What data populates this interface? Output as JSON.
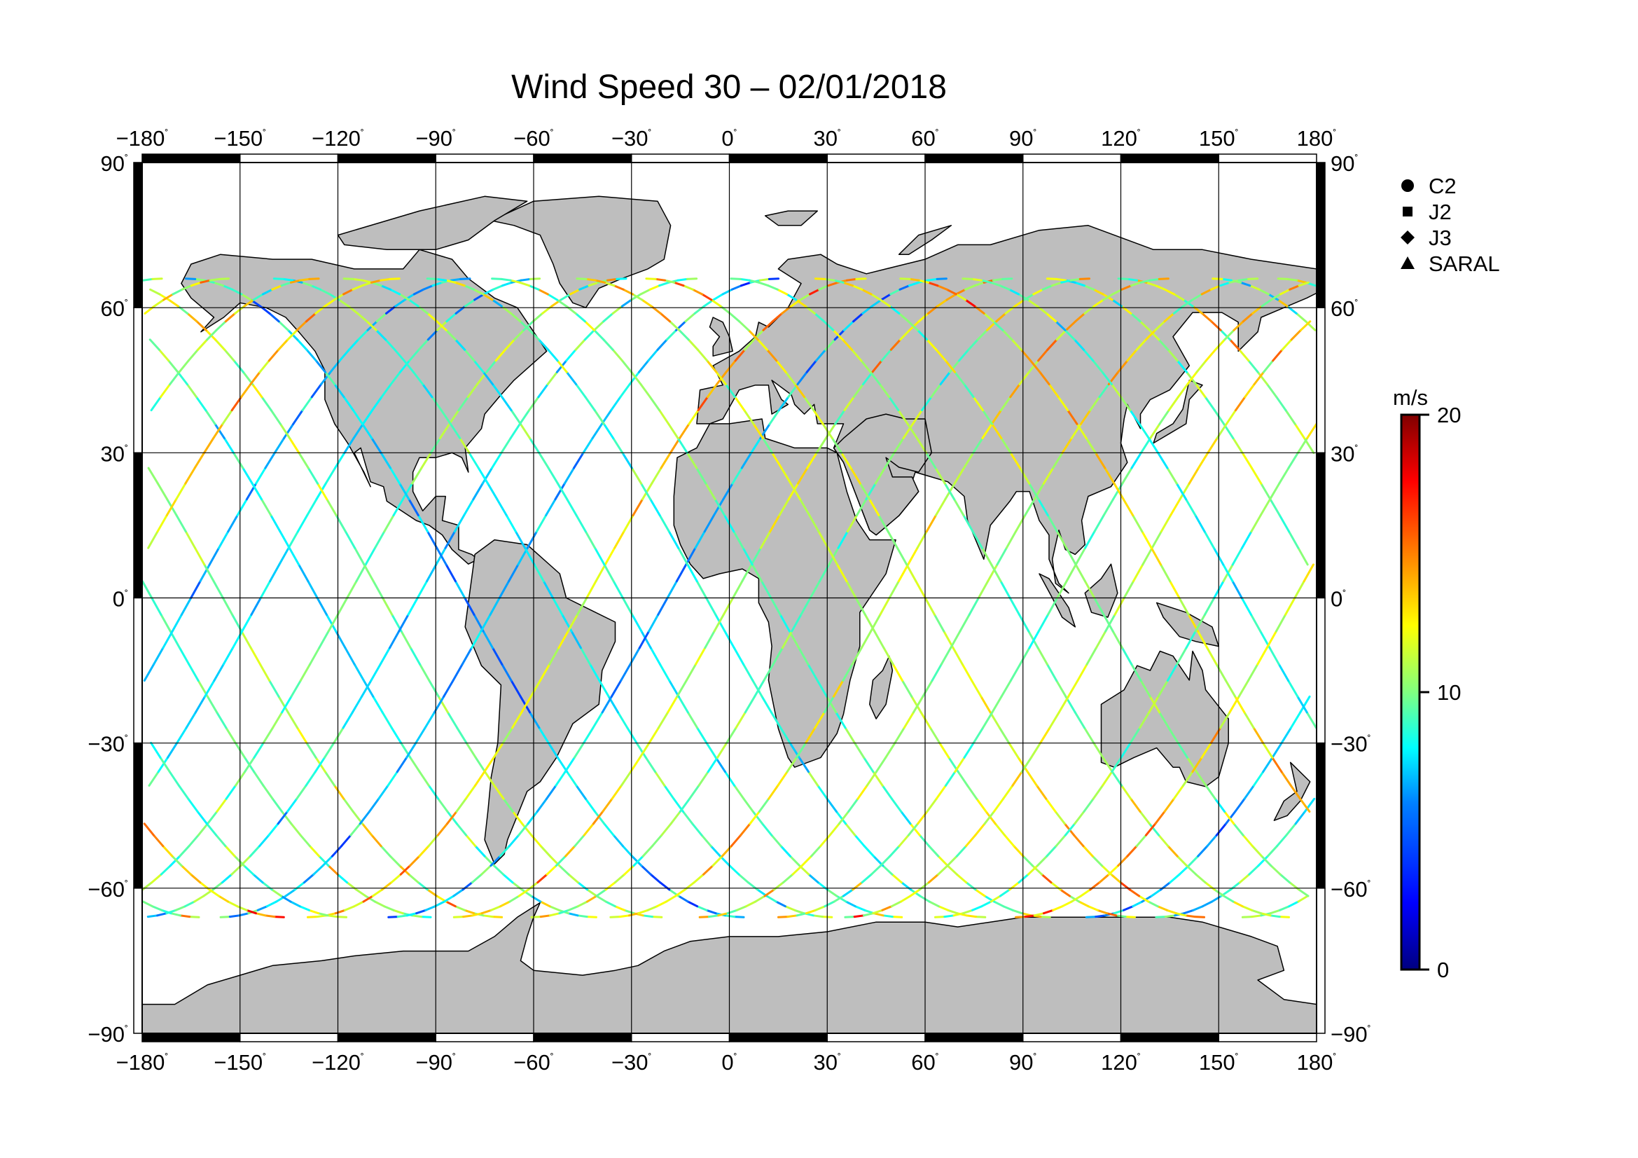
{
  "title": "Wind Speed 30 – 02/01/2018",
  "map": {
    "projection": "equirectangular",
    "lon_range": [
      -180,
      180
    ],
    "lat_range": [
      -90,
      90
    ],
    "lon_ticks": [
      {
        "value": -180,
        "label": "−180"
      },
      {
        "value": -150,
        "label": "−150"
      },
      {
        "value": -120,
        "label": "−120"
      },
      {
        "value": -90,
        "label": "−90"
      },
      {
        "value": -60,
        "label": "−60"
      },
      {
        "value": -30,
        "label": "−30"
      },
      {
        "value": 0,
        "label": "0"
      },
      {
        "value": 30,
        "label": "30"
      },
      {
        "value": 60,
        "label": "60"
      },
      {
        "value": 90,
        "label": "90"
      },
      {
        "value": 120,
        "label": "120"
      },
      {
        "value": 150,
        "label": "150"
      },
      {
        "value": 180,
        "label": "180"
      }
    ],
    "lat_ticks": [
      {
        "value": 90,
        "label": "90"
      },
      {
        "value": 60,
        "label": "60"
      },
      {
        "value": 30,
        "label": "30"
      },
      {
        "value": 0,
        "label": "0"
      },
      {
        "value": -30,
        "label": "−30"
      },
      {
        "value": -60,
        "label": "−60"
      },
      {
        "value": -90,
        "label": "−90"
      }
    ],
    "degree_symbol": "˚",
    "grid": true,
    "land_color": "#bebebe",
    "ocean_color": "#ffffff"
  },
  "legend": {
    "position": "top-right",
    "items": [
      {
        "label": "C2",
        "symbol": "circle"
      },
      {
        "label": "J2",
        "symbol": "square"
      },
      {
        "label": "J3",
        "symbol": "diamond"
      },
      {
        "label": "SARAL",
        "symbol": "triangle"
      }
    ]
  },
  "colorbar": {
    "unit": "m/s",
    "min": 0,
    "max": 20,
    "ticks": [
      {
        "value": 20,
        "label": "20"
      },
      {
        "value": 10,
        "label": "10"
      },
      {
        "value": 0,
        "label": "0"
      }
    ],
    "colormap": [
      "#000080",
      "#0000ff",
      "#0080ff",
      "#00ffff",
      "#80ff80",
      "#ffff00",
      "#ff8000",
      "#ff0000",
      "#800000"
    ]
  },
  "chart_data": {
    "type": "scatter",
    "title": "Wind Speed 30 – 02/01/2018",
    "x_variable": "longitude (deg)",
    "y_variable": "latitude (deg)",
    "color_variable": "wind speed (m/s)",
    "xlim": [
      -180,
      180
    ],
    "ylim": [
      -90,
      90
    ],
    "clim": [
      0,
      20
    ],
    "series": [
      {
        "name": "C2",
        "marker": "circle"
      },
      {
        "name": "J2",
        "marker": "square"
      },
      {
        "name": "J3",
        "marker": "diamond"
      },
      {
        "name": "SARAL",
        "marker": "triangle"
      }
    ]
  }
}
